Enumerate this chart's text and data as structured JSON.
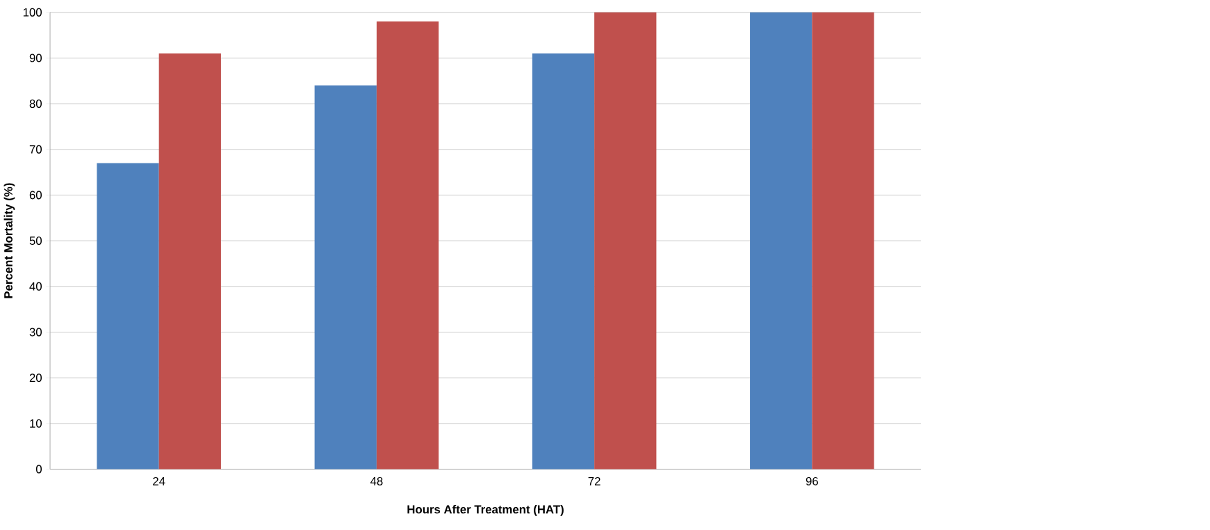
{
  "chart_data": {
    "type": "bar",
    "xlabel": "Hours After Treatment (HAT)",
    "ylabel": "Percent Mortality (%)",
    "categories": [
      "24",
      "48",
      "72",
      "96"
    ],
    "series": [
      {
        "color": "#4f81bd",
        "values": [
          67,
          84,
          91,
          100
        ]
      },
      {
        "color": "#c0504d",
        "values": [
          91,
          98,
          100,
          100
        ]
      }
    ],
    "ylim": [
      0,
      100
    ],
    "yticks": [
      0,
      10,
      20,
      30,
      40,
      50,
      60,
      70,
      80,
      90,
      100
    ],
    "grid": "y"
  }
}
